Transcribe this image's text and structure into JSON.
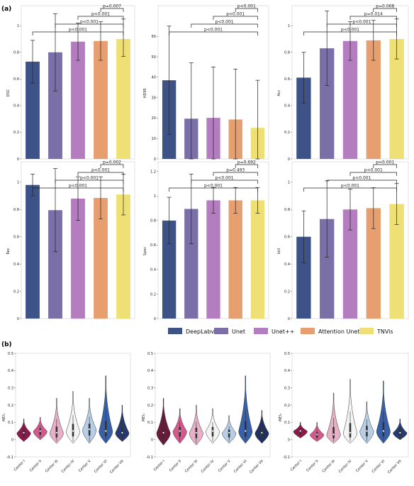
{
  "figure": {
    "label_a": "(a)",
    "label_b": "(b)"
  },
  "colors": {
    "DeepLabv3+": "#3d5388",
    "Unet": "#7b6fa8",
    "Unet++": "#b47dbf",
    "Attention Unet": "#e89f70",
    "TNVis": "#efe076"
  },
  "legend": [
    "DeepLabv3+",
    "Unet",
    "Unet++",
    "Attention Unet",
    "TNVis"
  ],
  "chart_data": [
    {
      "type": "bar",
      "ylabel": "DSC",
      "ylim": [
        0,
        1.15
      ],
      "yticks": [
        0,
        0.2,
        0.4,
        0.6,
        0.8,
        1.0
      ],
      "categories": [
        "DeepLabv3+",
        "Unet",
        "Unet++",
        "Attention Unet",
        "TNVis"
      ],
      "values": [
        0.73,
        0.8,
        0.88,
        0.885,
        0.9
      ],
      "err_low": [
        0.57,
        0.51,
        0.74,
        0.74,
        0.77
      ],
      "err_high": [
        0.89,
        1.09,
        1.02,
        1.03,
        1.05
      ],
      "brackets": [
        "p<0.001",
        "p<0.001",
        "p<0.001",
        "p=0.007"
      ]
    },
    {
      "type": "bar",
      "ylabel": "HD95",
      "ylim": [
        0,
        75
      ],
      "yticks": [
        0,
        10,
        20,
        30,
        40,
        50,
        60
      ],
      "categories": [
        "DeepLabv3+",
        "Unet",
        "Unet++",
        "Attention Unet",
        "TNVis"
      ],
      "values": [
        38.5,
        19.7,
        20.1,
        19.3,
        15.2
      ],
      "err_low": [
        12,
        0,
        0,
        0,
        0
      ],
      "err_high": [
        65,
        47,
        45,
        44,
        38.5
      ],
      "brackets": [
        "p<0.001",
        "p<0.001",
        "p<0.001",
        "p<0.001"
      ]
    },
    {
      "type": "bar",
      "ylabel": "Acc",
      "ylim": [
        0,
        1.15
      ],
      "yticks": [
        0,
        0.2,
        0.4,
        0.6,
        0.8,
        1.0
      ],
      "categories": [
        "DeepLabv3+",
        "Unet",
        "Unet++",
        "Attention Unet",
        "TNVis"
      ],
      "values": [
        0.61,
        0.83,
        0.885,
        0.89,
        0.9
      ],
      "err_low": [
        0.42,
        0.55,
        0.74,
        0.74,
        0.75
      ],
      "err_high": [
        0.8,
        1.11,
        1.03,
        1.04,
        1.05
      ],
      "brackets": [
        "p<0.001",
        "p<0.001",
        "p=0.014",
        "p=0.068"
      ]
    },
    {
      "type": "bar",
      "ylabel": "Rec",
      "ylim": [
        0,
        1.15
      ],
      "yticks": [
        0,
        0.2,
        0.4,
        0.6,
        0.8,
        1.0
      ],
      "categories": [
        "DeepLabv3+",
        "Unet",
        "Unet++",
        "Attention Unet",
        "TNVis"
      ],
      "values": [
        0.98,
        0.795,
        0.88,
        0.885,
        0.91
      ],
      "err_low": [
        0.9,
        0.49,
        0.72,
        0.73,
        0.76
      ],
      "err_high": [
        1.06,
        1.1,
        1.04,
        1.04,
        1.06
      ],
      "brackets": [
        "p<0.001",
        "p<0.001",
        "p<0.001",
        "p=0.002"
      ]
    },
    {
      "type": "bar",
      "ylabel": "Spec",
      "ylim": [
        0,
        1.28
      ],
      "yticks": [
        0,
        0.2,
        0.4,
        0.6,
        0.8,
        1.0,
        1.2
      ],
      "categories": [
        "DeepLabv3+",
        "Unet",
        "Unet++",
        "Attention Unet",
        "TNVis"
      ],
      "values": [
        0.8,
        0.895,
        0.965,
        0.965,
        0.965
      ],
      "err_low": [
        0.61,
        0.61,
        0.86,
        0.86,
        0.86
      ],
      "err_high": [
        0.99,
        1.18,
        1.07,
        1.07,
        1.07
      ],
      "brackets": [
        "p<0.001",
        "p<0.001",
        "p=0.493",
        "p=0.692"
      ]
    },
    {
      "type": "bar",
      "ylabel": "IoU",
      "ylim": [
        0,
        1.15
      ],
      "yticks": [
        0,
        0.2,
        0.4,
        0.6,
        0.8,
        1.0
      ],
      "categories": [
        "DeepLabv3+",
        "Unet",
        "Unet++",
        "Attention Unet",
        "TNVis"
      ],
      "values": [
        0.6,
        0.73,
        0.8,
        0.81,
        0.84
      ],
      "err_low": [
        0.41,
        0.45,
        0.65,
        0.66,
        0.69
      ],
      "err_high": [
        0.79,
        1.01,
        0.95,
        0.96,
        0.99
      ],
      "brackets": [
        "p<0.001",
        "p<0.001",
        "p<0.001",
        "p<0.001"
      ]
    },
    {
      "type": "violin",
      "ylabel": "MEI₁",
      "ylim": [
        -0.1,
        0.5
      ],
      "yticks": [
        -0.1,
        0.0,
        0.1,
        0.2,
        0.3,
        0.4,
        0.5
      ],
      "categories": [
        "Center I",
        "Center II",
        "Center III",
        "Center IV",
        "Center V",
        "Center VI",
        "Center VII"
      ],
      "medians": [
        0.04,
        0.05,
        0.04,
        0.05,
        0.06,
        0.05,
        0.04
      ],
      "mins": [
        -0.01,
        0.0,
        -0.02,
        -0.02,
        -0.02,
        -0.02,
        -0.01
      ],
      "maxs": [
        0.12,
        0.13,
        0.24,
        0.28,
        0.24,
        0.37,
        0.2
      ],
      "colors": [
        "#8b1a4a",
        "#d45a8e",
        "#e8b0c6",
        "#f4f4f4",
        "#b8cde6",
        "#3860a8",
        "#273a6f"
      ]
    },
    {
      "type": "violin",
      "ylabel": "MEI₂",
      "ylim": [
        -0.1,
        0.5
      ],
      "yticks": [
        -0.1,
        0.0,
        0.1,
        0.2,
        0.3,
        0.4,
        0.5
      ],
      "categories": [
        "Center I",
        "Center II",
        "Center III",
        "Center IV",
        "Center V",
        "Center VI",
        "Center VII"
      ],
      "medians": [
        0.04,
        0.05,
        0.04,
        0.05,
        0.04,
        0.05,
        0.04
      ],
      "mins": [
        -0.03,
        -0.02,
        -0.03,
        -0.02,
        -0.02,
        -0.02,
        -0.02
      ],
      "maxs": [
        0.24,
        0.18,
        0.2,
        0.18,
        0.14,
        0.37,
        0.17
      ],
      "colors": [
        "#6b1a3a",
        "#d45a8e",
        "#e8b0c6",
        "#f4f4f4",
        "#b8cde6",
        "#3860a8",
        "#1f2f5f"
      ]
    },
    {
      "type": "violin",
      "ylabel": "MEI₃",
      "ylim": [
        -0.1,
        0.5
      ],
      "yticks": [
        -0.1,
        0.0,
        0.1,
        0.2,
        0.3,
        0.4,
        0.5
      ],
      "categories": [
        "Center I",
        "Center II",
        "Center III",
        "Center IV",
        "Center V",
        "Center VI",
        "Center VII"
      ],
      "medians": [
        0.05,
        0.03,
        0.03,
        0.04,
        0.05,
        0.05,
        0.04
      ],
      "mins": [
        0.01,
        -0.01,
        -0.02,
        -0.02,
        -0.02,
        -0.02,
        0.0
      ],
      "maxs": [
        0.1,
        0.1,
        0.27,
        0.35,
        0.22,
        0.34,
        0.12
      ],
      "colors": [
        "#8b1a4a",
        "#d45a8e",
        "#e8b0c6",
        "#f4f4f4",
        "#b8cde6",
        "#3860a8",
        "#273a6f"
      ]
    }
  ]
}
